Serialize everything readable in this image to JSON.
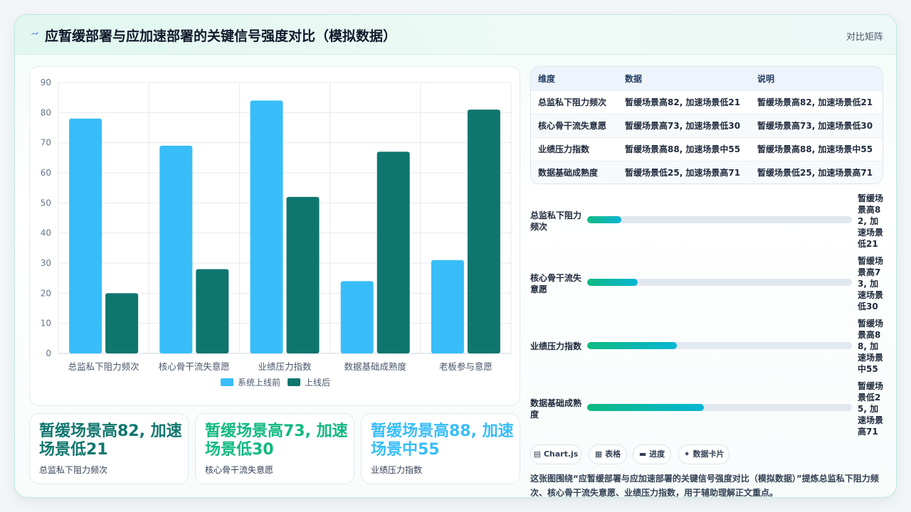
{
  "header": {
    "title": "应暂缓部署与应加速部署的关键信号强度对比（模拟数据）",
    "tag": "对比矩阵"
  },
  "chart_data": {
    "type": "bar",
    "categories": [
      "总监私下阻力频次",
      "核心骨干流失意愿",
      "业绩压力指数",
      "数据基础成熟度",
      "老板参与意愿"
    ],
    "series": [
      {
        "name": "系统上线前",
        "values": [
          78,
          69,
          84,
          24,
          31
        ],
        "color": "#38bdf8"
      },
      {
        "name": "上线后",
        "values": [
          20,
          28,
          52,
          67,
          81
        ],
        "color": "#0f766e"
      }
    ],
    "title": "",
    "xlabel": "",
    "ylabel": "",
    "ylim": [
      0,
      90
    ],
    "yticks": [
      0,
      10,
      20,
      30,
      40,
      50,
      60,
      70,
      80,
      90
    ],
    "grid": true,
    "legend": "bottom"
  },
  "kpis": [
    {
      "value": "暂缓场景高82, 加速场景低21",
      "label": "总监私下阻力频次",
      "color": "#0f766e"
    },
    {
      "value": "暂缓场景高73, 加速场景低30",
      "label": "核心骨干流失意愿",
      "color": "#10b981"
    },
    {
      "value": "暂缓场景高88, 加速场景中55",
      "label": "业绩压力指数",
      "color": "#38bdf8"
    }
  ],
  "table": {
    "headers": [
      "维度",
      "数据",
      "说明"
    ],
    "rows": [
      [
        "总监私下阻力频次",
        "暂缓场景高82, 加速场景低21",
        "暂缓场景高82, 加速场景低21"
      ],
      [
        "核心骨干流失意愿",
        "暂缓场景高73, 加速场景低30",
        "暂缓场景高73, 加速场景低30"
      ],
      [
        "业绩压力指数",
        "暂缓场景高88, 加速场景中55",
        "暂缓场景高88, 加速场景中55"
      ],
      [
        "数据基础成熟度",
        "暂缓场景低25, 加速场景高71",
        "暂缓场景低25, 加速场景高71"
      ]
    ]
  },
  "progress": [
    {
      "label": "总监私下阻力频次",
      "value": "暂缓场景高82, 加速场景低21",
      "fraction": 0.13
    },
    {
      "label": "核心骨干流失意愿",
      "value": "暂缓场景高73, 加速场景低30",
      "fraction": 0.19
    },
    {
      "label": "业绩压力指数",
      "value": "暂缓场景高88, 加速场景中55",
      "fraction": 0.34
    },
    {
      "label": "数据基础成熟度",
      "value": "暂缓场景低25, 加速场景高71",
      "fraction": 0.44
    }
  ],
  "chips": [
    "▤ Chart.js",
    "▦ 表格",
    "▬ 进度",
    "✦ 数据卡片"
  ],
  "description": "这张图围绕“应暂缓部署与应加速部署的关键信号强度对比（模拟数据）”提炼总监私下阻力频次、核心骨干流失意愿、业绩压力指数，用于辅助理解正文重点。"
}
